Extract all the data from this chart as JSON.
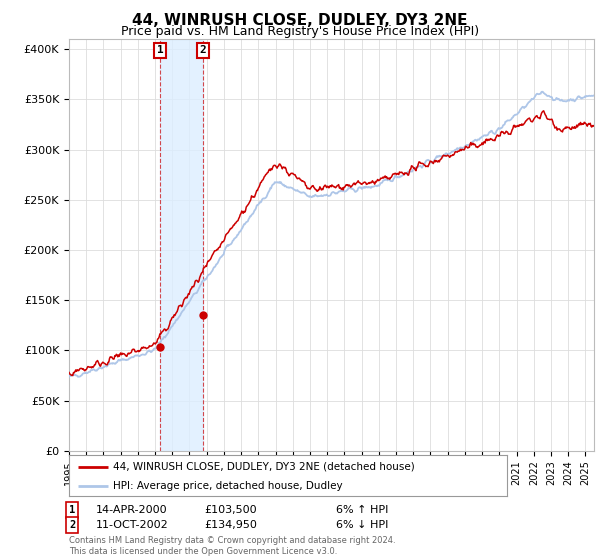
{
  "title": "44, WINRUSH CLOSE, DUDLEY, DY3 2NE",
  "subtitle": "Price paid vs. HM Land Registry's House Price Index (HPI)",
  "title_fontsize": 11,
  "subtitle_fontsize": 9,
  "ylabel_ticks": [
    "£0",
    "£50K",
    "£100K",
    "£150K",
    "£200K",
    "£250K",
    "£300K",
    "£350K",
    "£400K"
  ],
  "ytick_values": [
    0,
    50000,
    100000,
    150000,
    200000,
    250000,
    300000,
    350000,
    400000
  ],
  "ylim": [
    0,
    410000
  ],
  "xlim_start": 1995.0,
  "xlim_end": 2025.5,
  "hpi_color": "#aec6e8",
  "price_color": "#cc0000",
  "legend_line1": "44, WINRUSH CLOSE, DUDLEY, DY3 2NE (detached house)",
  "legend_line2": "HPI: Average price, detached house, Dudley",
  "transaction1_date": "14-APR-2000",
  "transaction1_price": "£103,500",
  "transaction1_hpi": "6% ↑ HPI",
  "transaction1_x": 2000.28,
  "transaction1_y": 103500,
  "transaction2_date": "11-OCT-2002",
  "transaction2_price": "£134,950",
  "transaction2_hpi": "6% ↓ HPI",
  "transaction2_x": 2002.78,
  "transaction2_y": 134950,
  "footer": "Contains HM Land Registry data © Crown copyright and database right 2024.\nThis data is licensed under the Open Government Licence v3.0.",
  "background_color": "#ffffff",
  "plot_bg_color": "#ffffff",
  "grid_color": "#dddddd",
  "shade_color": "#dceeff",
  "vline_color": "#cc0000"
}
